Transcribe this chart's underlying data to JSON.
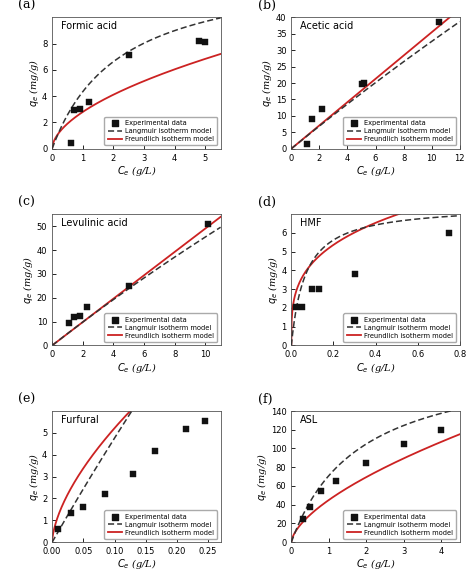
{
  "panels": [
    {
      "label": "(a)",
      "title": "Formic acid",
      "exp_x": [
        0.63,
        0.72,
        0.9,
        1.2,
        2.5,
        4.8,
        5.0
      ],
      "exp_y": [
        0.42,
        2.95,
        3.0,
        3.55,
        7.15,
        8.2,
        8.1
      ],
      "xlim": [
        0,
        5.5
      ],
      "ylim": [
        0,
        10
      ],
      "yticks": [
        0,
        2,
        4,
        6,
        8
      ],
      "xticks": [
        0,
        1,
        2,
        3,
        4,
        5
      ],
      "langmuir_params": {
        "qm": 14.0,
        "KL": 0.45
      },
      "freundlich_params": {
        "KF": 2.8,
        "n": 1.8
      }
    },
    {
      "label": "(b)",
      "title": "Acetic acid",
      "exp_x": [
        1.1,
        1.5,
        2.2,
        5.0,
        5.2,
        10.5
      ],
      "exp_y": [
        1.5,
        9.0,
        12.0,
        19.8,
        20.0,
        38.5
      ],
      "xlim": [
        0,
        12
      ],
      "ylim": [
        0,
        40
      ],
      "yticks": [
        0,
        5,
        10,
        15,
        20,
        25,
        30,
        35,
        40
      ],
      "xticks": [
        0,
        2,
        4,
        6,
        8,
        10,
        12
      ],
      "langmuir_params": {
        "qm": 500.0,
        "KL": 0.007
      },
      "freundlich_params": {
        "KF": 3.55,
        "n": 1.0
      }
    },
    {
      "label": "(c)",
      "title": "Levulinic acid",
      "exp_x": [
        1.1,
        1.4,
        1.8,
        2.3,
        5.0,
        10.2
      ],
      "exp_y": [
        9.2,
        12.0,
        12.2,
        16.0,
        25.0,
        51.0
      ],
      "xlim": [
        0,
        11
      ],
      "ylim": [
        0,
        55
      ],
      "yticks": [
        0,
        10,
        20,
        30,
        40,
        50
      ],
      "xticks": [
        0,
        2,
        4,
        6,
        8,
        10
      ],
      "langmuir_params": {
        "qm": 500.0,
        "KL": 0.01
      },
      "freundlich_params": {
        "KF": 4.9,
        "n": 1.0
      }
    },
    {
      "label": "(d)",
      "title": "HMF",
      "exp_x": [
        0.02,
        0.05,
        0.1,
        0.13,
        0.3,
        0.75
      ],
      "exp_y": [
        2.05,
        2.05,
        3.0,
        3.0,
        3.8,
        6.0
      ],
      "xlim": [
        0,
        0.8
      ],
      "ylim": [
        0,
        7
      ],
      "yticks": [
        0,
        1,
        2,
        3,
        4,
        5,
        6
      ],
      "xticks": [
        0.0,
        0.2,
        0.4,
        0.6,
        0.8
      ],
      "langmuir_params": {
        "qm": 7.5,
        "KL": 15.0
      },
      "freundlich_params": {
        "KF": 8.5,
        "n": 3.5
      }
    },
    {
      "label": "(e)",
      "title": "Furfural",
      "exp_x": [
        0.01,
        0.03,
        0.05,
        0.085,
        0.13,
        0.165,
        0.215,
        0.245
      ],
      "exp_y": [
        0.62,
        1.35,
        1.6,
        2.2,
        3.1,
        4.15,
        5.2,
        5.55
      ],
      "xlim": [
        0,
        0.27
      ],
      "ylim": [
        0,
        6
      ],
      "yticks": [
        0,
        1,
        2,
        3,
        4,
        5
      ],
      "xticks": [
        0.0,
        0.05,
        0.1,
        0.15,
        0.2,
        0.25
      ],
      "langmuir_params": {
        "qm": 100.0,
        "KL": 0.5
      },
      "freundlich_params": {
        "KF": 22.0,
        "n": 1.6
      }
    },
    {
      "label": "(f)",
      "title": "ASL",
      "exp_x": [
        0.3,
        0.5,
        0.8,
        1.2,
        2.0,
        3.0,
        4.0
      ],
      "exp_y": [
        25.0,
        38.0,
        55.0,
        65.0,
        85.0,
        105.0,
        120.0
      ],
      "xlim": [
        0,
        4.5
      ],
      "ylim": [
        0,
        140
      ],
      "yticks": [
        0,
        20,
        40,
        60,
        80,
        100,
        120,
        140
      ],
      "xticks": [
        0,
        1,
        2,
        3,
        4
      ],
      "langmuir_params": {
        "qm": 200.0,
        "KL": 0.55
      },
      "freundlich_params": {
        "KF": 45.0,
        "n": 1.6
      }
    }
  ],
  "legend_labels": [
    "Experimental data",
    "Langmuir isotherm model",
    "Freundlich isotherm model"
  ],
  "langmuir_color": "#333333",
  "freundlich_color": "#cc2222",
  "exp_color": "#111111",
  "xlabel": "$C_e$ (g/L)",
  "ylabel": "$q_e$ (mg/g)",
  "background_color": "#ffffff"
}
